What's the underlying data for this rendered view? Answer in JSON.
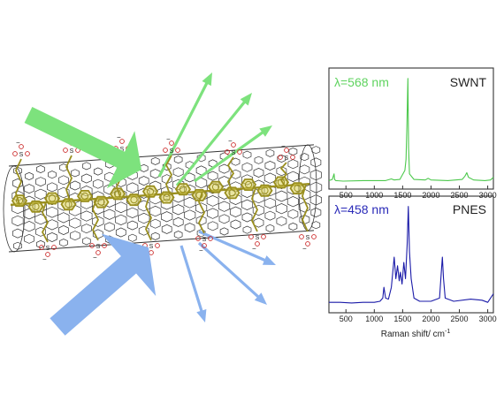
{
  "colors": {
    "green": "#7de27d",
    "blue": "#8ab2ee",
    "tube": "#333333",
    "polymer": "#9a8f1f",
    "polymer_fill": "#d8cf55",
    "sulfonate": "#cc2b2b",
    "panel_border": "#333333",
    "swnt_line": "#4cc84c",
    "pnes_line": "#1a1aa8",
    "swnt_label": "#5fd35f",
    "pnes_label": "#2a2ab8"
  },
  "icons": [
    "green-laser-arrow-icon",
    "blue-laser-arrow-icon",
    "scattered-light-arrow-icon",
    "nanotube-icon",
    "polymer-chain-icon",
    "sulfonate-group-icon"
  ],
  "molecule": {
    "sulfonate_atom_S": "S",
    "sulfonate_atom_O": "O",
    "charge": "−"
  },
  "spectra": {
    "x_label": "Raman shift/ cm",
    "x_label_exponent": "-1",
    "x_ticks": [
      "500",
      "1000",
      "1500",
      "2000",
      "2500",
      "3000"
    ],
    "chart_data": [
      {
        "type": "line",
        "name": "SWNT",
        "lambda_symbol": "λ",
        "lambda_value": "=568 nm",
        "xlim": [
          200,
          3100
        ],
        "ylim": [
          0,
          1
        ],
        "x": [
          200,
          260,
          290,
          300,
          320,
          450,
          800,
          1200,
          1300,
          1350,
          1450,
          1540,
          1560,
          1575,
          1592,
          1605,
          1620,
          1700,
          1900,
          1950,
          2000,
          2300,
          2550,
          2600,
          2630,
          2660,
          2750,
          2950,
          3050,
          3100
        ],
        "y": [
          0.06,
          0.07,
          0.12,
          0.07,
          0.06,
          0.055,
          0.06,
          0.06,
          0.075,
          0.065,
          0.07,
          0.15,
          0.25,
          0.55,
          0.97,
          0.35,
          0.12,
          0.07,
          0.065,
          0.08,
          0.065,
          0.06,
          0.07,
          0.1,
          0.13,
          0.09,
          0.065,
          0.06,
          0.065,
          0.09
        ]
      },
      {
        "type": "line",
        "name": "PNES",
        "lambda_symbol": "λ",
        "lambda_value": "=458 nm",
        "xlim": [
          200,
          3100
        ],
        "ylim": [
          0,
          1
        ],
        "x": [
          200,
          400,
          600,
          800,
          1000,
          1100,
          1150,
          1170,
          1200,
          1250,
          1300,
          1350,
          1380,
          1410,
          1440,
          1460,
          1490,
          1520,
          1550,
          1580,
          1600,
          1620,
          1650,
          1700,
          1800,
          2000,
          2150,
          2180,
          2200,
          2220,
          2250,
          2400,
          2700,
          2900,
          3000,
          3100
        ],
        "y": [
          0.08,
          0.08,
          0.075,
          0.08,
          0.08,
          0.09,
          0.12,
          0.22,
          0.12,
          0.11,
          0.22,
          0.5,
          0.3,
          0.42,
          0.28,
          0.36,
          0.25,
          0.45,
          0.3,
          0.62,
          0.97,
          0.55,
          0.3,
          0.12,
          0.09,
          0.09,
          0.12,
          0.35,
          0.5,
          0.3,
          0.12,
          0.09,
          0.11,
          0.1,
          0.08,
          0.16
        ]
      }
    ]
  }
}
